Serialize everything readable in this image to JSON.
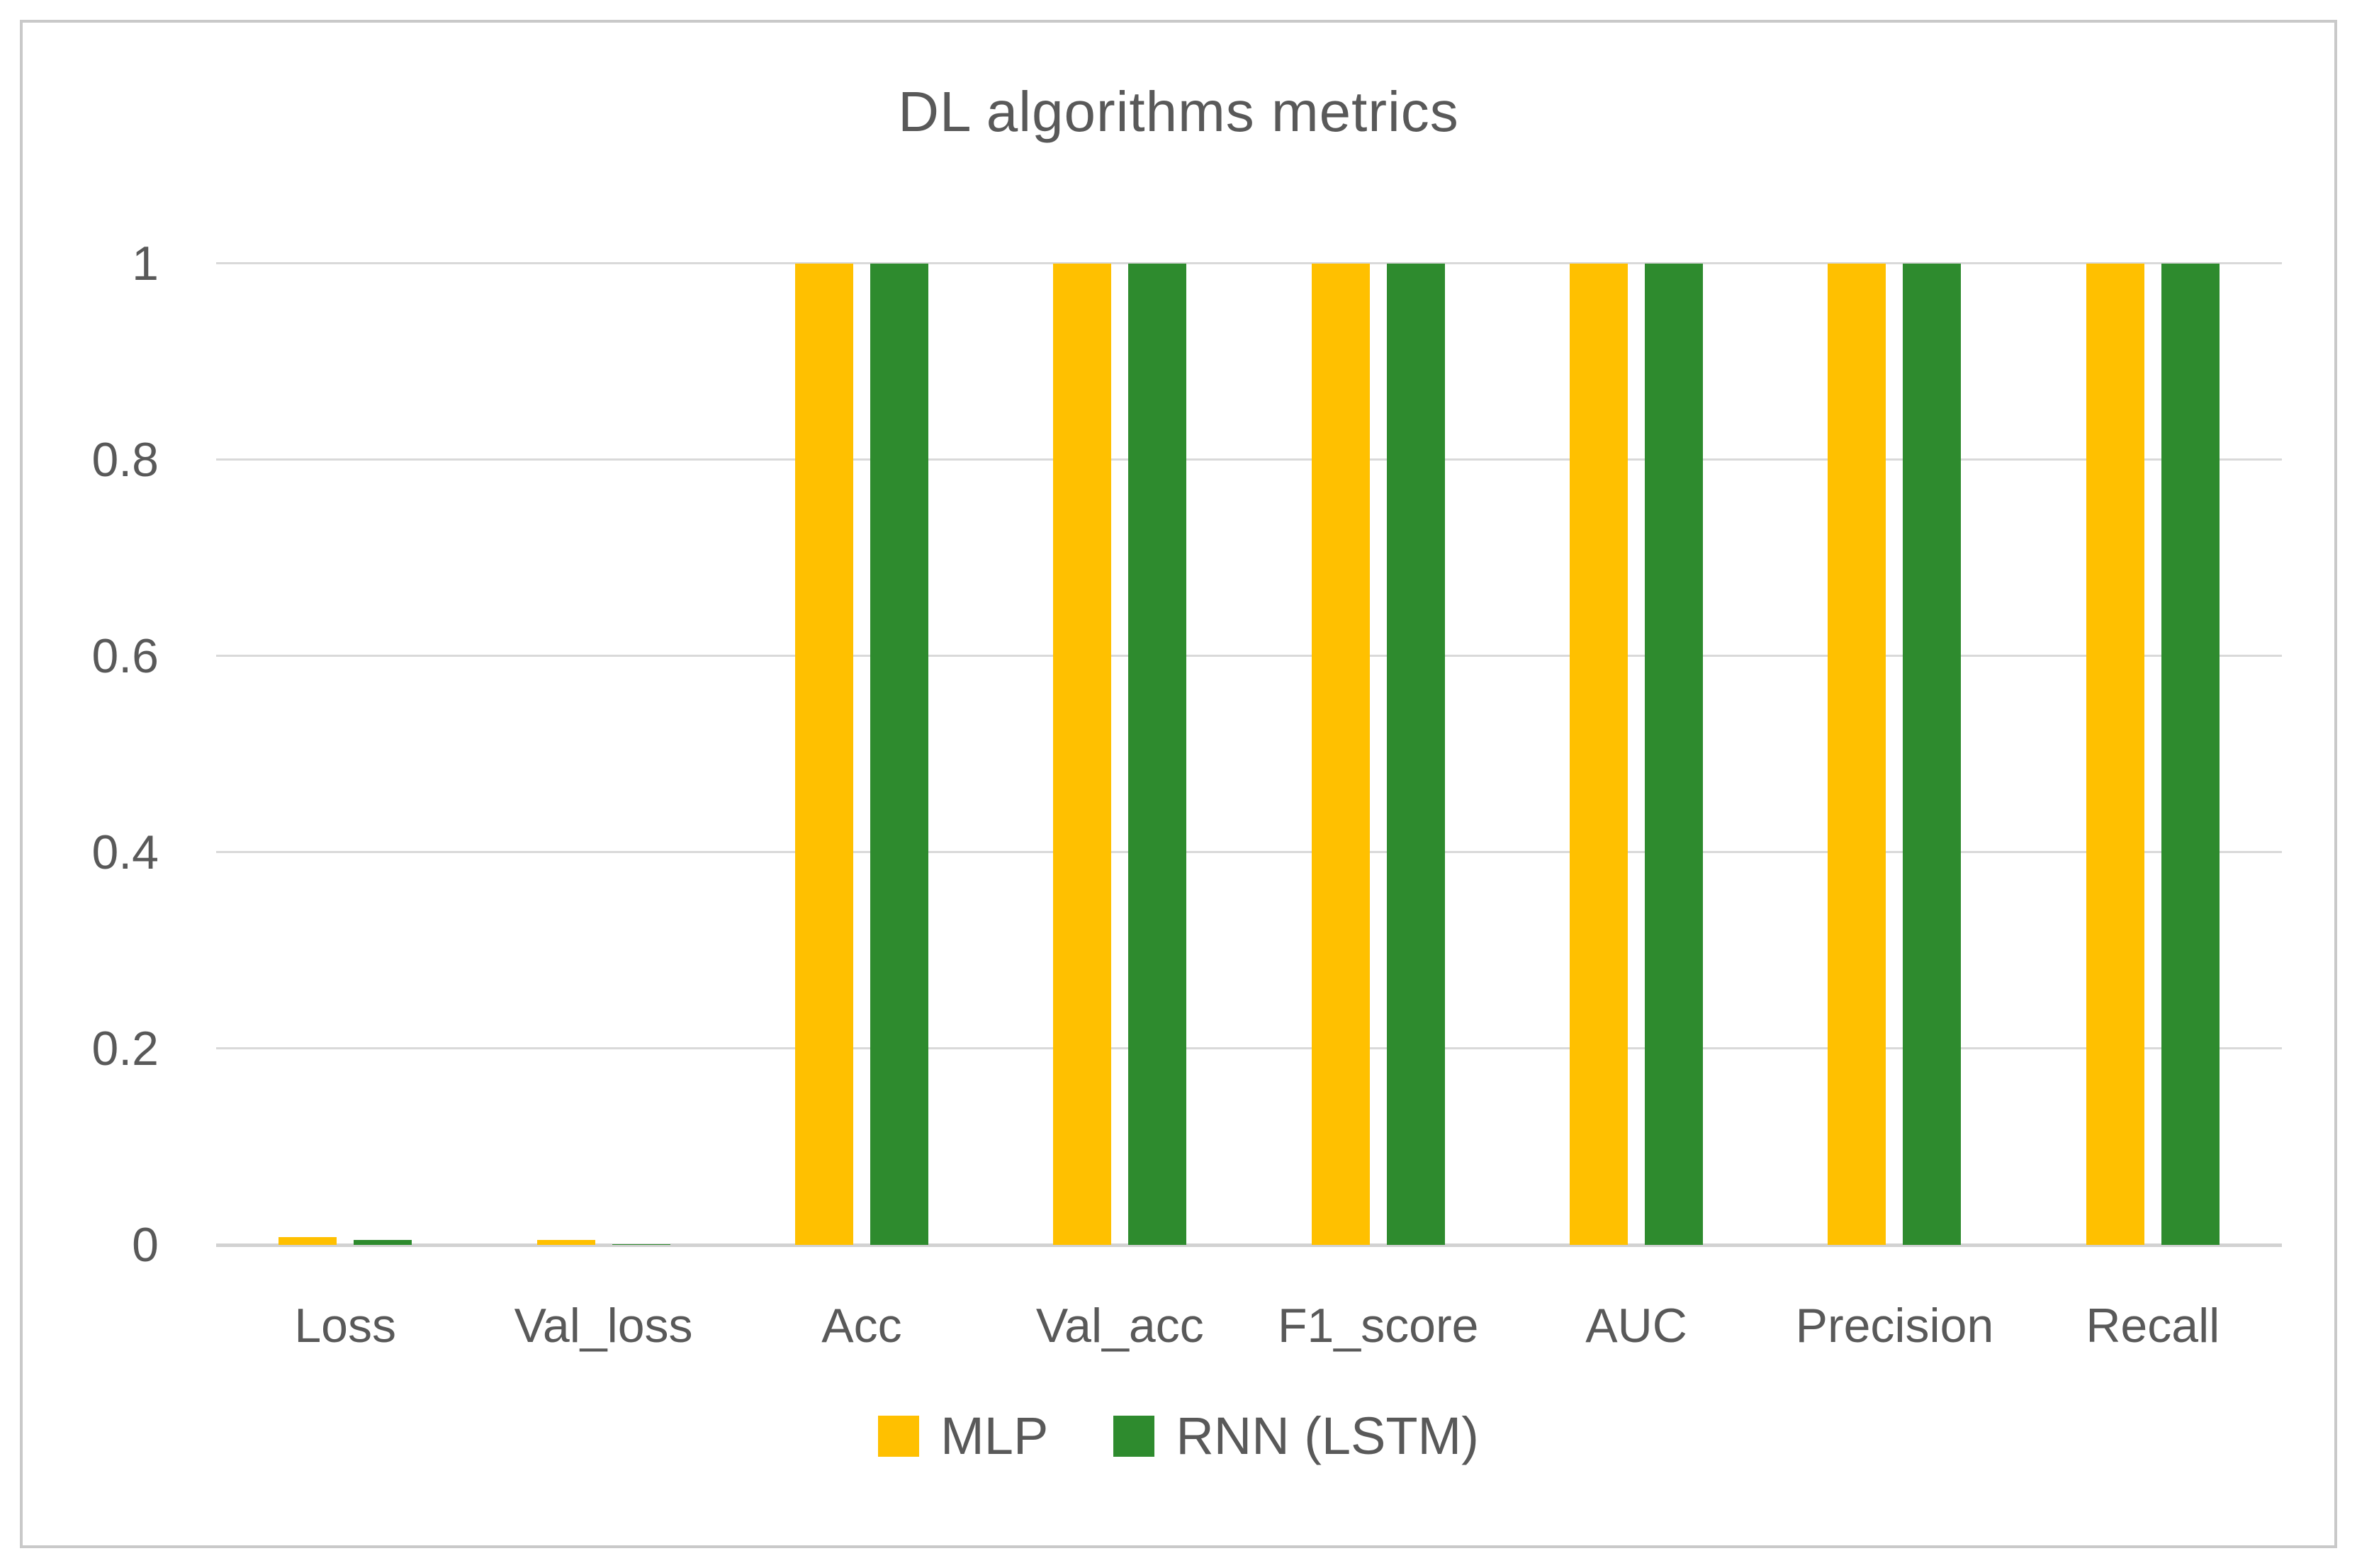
{
  "page": {
    "background": "#ffffff",
    "frame_border_color": "#c9c9c9"
  },
  "chart_data": {
    "type": "bar",
    "title": "DL algorithms metrics",
    "categories": [
      "Loss",
      "Val_loss",
      "Acc",
      "Val_acc",
      "F1_score",
      "AUC",
      "Precision",
      "Recall"
    ],
    "series": [
      {
        "name": "MLP",
        "color": "#FFC000",
        "values": [
          0.008,
          0.005,
          1,
          1,
          1,
          1,
          1,
          1
        ]
      },
      {
        "name": "RNN (LSTM)",
        "color": "#2E8B2E",
        "values": [
          0.005,
          0.001,
          1,
          1,
          1,
          1,
          1,
          1
        ]
      }
    ],
    "xlabel": "",
    "ylabel": "",
    "ylim": [
      0,
      1
    ],
    "yticks": [
      0,
      0.2,
      0.4,
      0.6,
      0.8,
      1
    ],
    "ytick_labels": [
      "0",
      "0.2",
      "0.4",
      "0.6",
      "0.8",
      "1"
    ],
    "grid": true,
    "gridline_color": "#d9d9d9",
    "axis_line_color": "#d2d2d2",
    "text_color": "#595959",
    "legend_position": "bottom"
  }
}
